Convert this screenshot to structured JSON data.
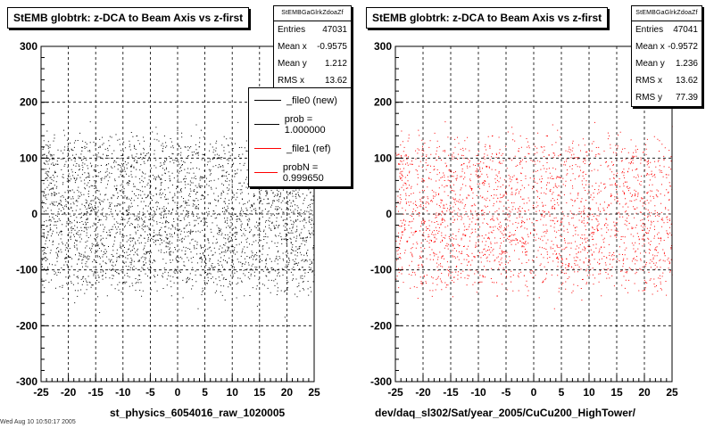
{
  "chart_data": [
    {
      "type": "scatter",
      "title": "StEMB globtrk: z-DCA to Beam Axis vs z-first",
      "xlabel": "st_physics_6054016_raw_1020005",
      "ylabel": "",
      "xlim": [
        -25,
        25
      ],
      "ylim": [
        -300,
        300
      ],
      "xticks": [
        "-25",
        "-20",
        "-15",
        "-10",
        "-5",
        "0",
        "5",
        "10",
        "15",
        "20",
        "25"
      ],
      "yticks": [
        "-300",
        "-200",
        "-100",
        "0",
        "100",
        "200",
        "300"
      ],
      "grid": true,
      "marker_color": "#000000",
      "stats": {
        "name": "StEMBGaGlrkZdoaZf",
        "rows": [
          {
            "label": "Entries",
            "value": "47031"
          },
          {
            "label": "Mean x",
            "value": "-0.9575"
          },
          {
            "label": "Mean y",
            "value": "1.212"
          },
          {
            "label": "RMS x",
            "value": "13.62"
          }
        ]
      },
      "legend": {
        "placement": "top-right",
        "entries": [
          {
            "label": "_file0 (new)",
            "color": "#000000"
          },
          {
            "label": "prob = 1.000000",
            "color": "#000000"
          },
          {
            "label": "_file1 (ref)",
            "color": "#ff0000"
          },
          {
            "label": "probN = 0.999650",
            "color": "#ff0000"
          }
        ]
      },
      "density": {
        "mean_y": 1.2,
        "band_halfwidth": 140,
        "entries": 47031
      }
    },
    {
      "type": "scatter",
      "title": "StEMB globtrk: z-DCA to Beam Axis vs z-first",
      "xlabel": "dev/daq_sl302/Sat/year_2005/CuCu200_HighTower/",
      "ylabel": "",
      "xlim": [
        -25,
        25
      ],
      "ylim": [
        -300,
        300
      ],
      "xticks": [
        "-25",
        "-20",
        "-15",
        "-10",
        "-5",
        "0",
        "5",
        "10",
        "15",
        "20",
        "25"
      ],
      "yticks": [
        "-300",
        "-200",
        "-100",
        "0",
        "100",
        "200",
        "300"
      ],
      "grid": true,
      "marker_color": "#ff0000",
      "stats": {
        "name": "StEMBGaGlrkZdoaZf",
        "rows": [
          {
            "label": "Entries",
            "value": "47041"
          },
          {
            "label": "Mean x",
            "value": "-0.9572"
          },
          {
            "label": "Mean y",
            "value": "1.236"
          },
          {
            "label": "RMS x",
            "value": "13.62"
          },
          {
            "label": "RMS y",
            "value": "77.39"
          }
        ]
      },
      "density": {
        "mean_y": 1.2,
        "band_halfwidth": 140,
        "entries": 47041
      }
    }
  ],
  "footer_text": "Wed Aug 10 10:50:17 2005"
}
